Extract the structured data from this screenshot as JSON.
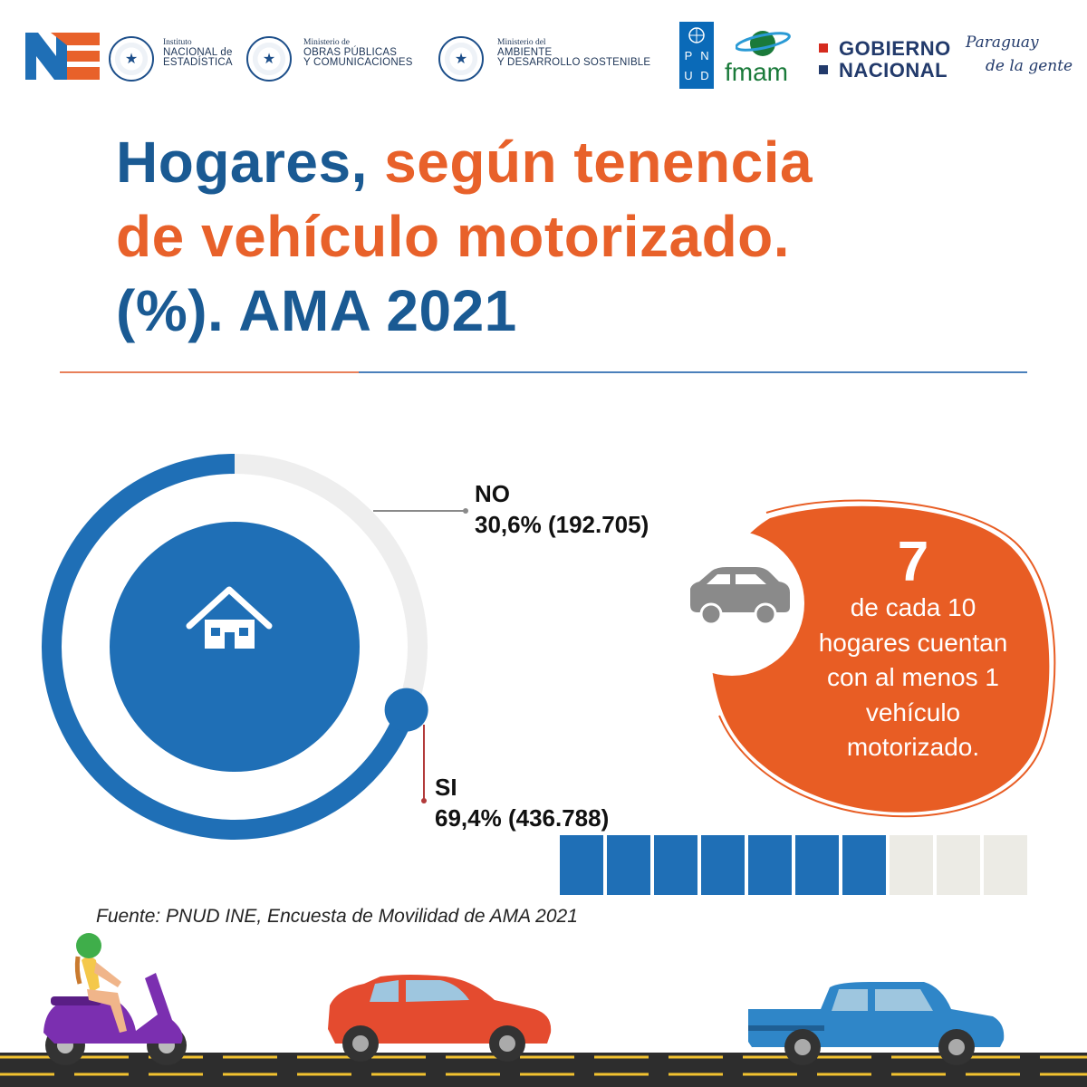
{
  "header": {
    "ne_logo_text": "NE",
    "ine": {
      "line1": "Instituto",
      "line2": "NACIONAL de",
      "line3": "ESTADÍSTICA"
    },
    "mopc": {
      "line1": "Ministerio de",
      "line2": "OBRAS PÚBLICAS",
      "line3": "Y COMUNICACIONES"
    },
    "mades": {
      "line1": "Ministerio del",
      "line2": "AMBIENTE",
      "line3": "Y DESARROLLO SOSTENIBLE"
    },
    "undp_letters": [
      "P",
      "N",
      "U",
      "D"
    ],
    "fmam": "fmam",
    "gobierno": {
      "line1": "GOBIERNO",
      "line2": "NACIONAL"
    },
    "paraguay": {
      "line1": "Paraguay",
      "line2": "de la gente"
    },
    "colors": {
      "undp_blue": "#0a6ab8",
      "paraguay_red": "#d52b1e",
      "paraguay_blue": "#223a6b"
    }
  },
  "title": {
    "part1": "Hogares, ",
    "part2": "según tenencia",
    "line2": "de vehículo motorizado.",
    "line3": "(%). AMA 2021",
    "colors": {
      "blue": "#1a5a93",
      "orange": "#e8612a"
    }
  },
  "chart_data": {
    "type": "pie",
    "title": "Hogares, según tenencia de vehículo motorizado. (%). AMA 2021",
    "categories": [
      "NO",
      "SI"
    ],
    "values": [
      30.6,
      69.4
    ],
    "counts": [
      192705,
      436788
    ],
    "labels": [
      {
        "name": "NO",
        "value_text": "30,6% (192.705)"
      },
      {
        "name": "SI",
        "value_text": "69,4% (436.788)"
      }
    ],
    "colors": {
      "SI": "#1f6fb6",
      "NO": "#eeeeee",
      "center": "#1f6fb6"
    },
    "center_icon": "house-icon"
  },
  "highlight": {
    "number": "7",
    "lines": [
      "de cada 10",
      "hogares cuentan",
      "con al menos 1",
      "vehículo",
      "motorizado."
    ],
    "icon": "car-icon",
    "color": "#e85d24"
  },
  "squares": {
    "filled": 7,
    "total": 10,
    "filled_color": "#1f6fb6",
    "empty_color": "#ecebe5"
  },
  "source": "Fuente: PNUD INE, Encuesta de Movilidad de AMA 2021",
  "illustration": {
    "icons": [
      "scooter-icon",
      "red-car-icon",
      "blue-pickup-icon",
      "road-icon"
    ]
  }
}
